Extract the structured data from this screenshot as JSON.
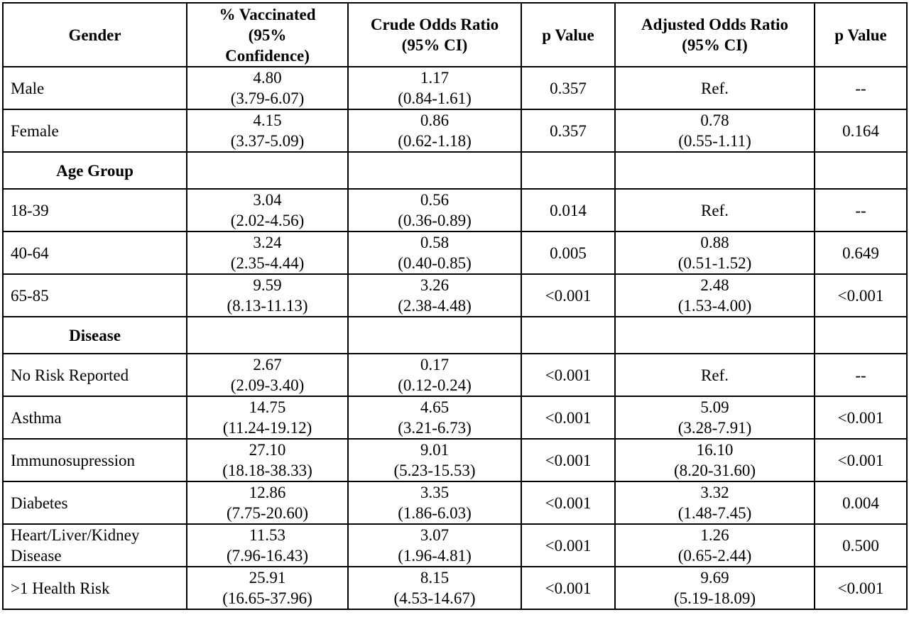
{
  "headers": {
    "col0": "Gender",
    "col1": [
      "% Vaccinated",
      "(95%",
      "Confidence)"
    ],
    "col2": [
      "Crude Odds Ratio",
      "(95% CI)"
    ],
    "col3": "p Value",
    "col4": [
      "Adjusted Odds Ratio",
      "(95% CI)"
    ],
    "col5": "p Value"
  },
  "gender_rows": [
    {
      "label": "Male",
      "vacc": "4.80",
      "vacc_ci": "(3.79-6.07)",
      "crude": "1.17",
      "crude_ci": "(0.84-1.61)",
      "p1": "0.357",
      "adj": "Ref.",
      "adj_ci": "",
      "p2": "--"
    },
    {
      "label": "Female",
      "vacc": "4.15",
      "vacc_ci": "(3.37-5.09)",
      "crude": "0.86",
      "crude_ci": "(0.62-1.18)",
      "p1": "0.357",
      "adj": "0.78",
      "adj_ci": "(0.55-1.11)",
      "p2": "0.164"
    }
  ],
  "age_section": "Age Group",
  "age_rows": [
    {
      "label": "18-39",
      "vacc": "3.04",
      "vacc_ci": "(2.02-4.56)",
      "crude": "0.56",
      "crude_ci": "(0.36-0.89)",
      "p1": "0.014",
      "adj": "Ref.",
      "adj_ci": "",
      "p2": "--"
    },
    {
      "label": "40-64",
      "vacc": "3.24",
      "vacc_ci": "(2.35-4.44)",
      "crude": "0.58",
      "crude_ci": "(0.40-0.85)",
      "p1": "0.005",
      "adj": "0.88",
      "adj_ci": "(0.51-1.52)",
      "p2": "0.649"
    },
    {
      "label": "65-85",
      "vacc": "9.59",
      "vacc_ci": "(8.13-11.13)",
      "crude": "3.26",
      "crude_ci": "(2.38-4.48)",
      "p1": "<0.001",
      "adj": "2.48",
      "adj_ci": "(1.53-4.00)",
      "p2": "<0.001"
    }
  ],
  "disease_section": "Disease",
  "disease_rows": [
    {
      "label": "No Risk Reported",
      "vacc": "2.67",
      "vacc_ci": "(2.09-3.40)",
      "crude": "0.17",
      "crude_ci": "(0.12-0.24)",
      "p1": "<0.001",
      "adj": "Ref.",
      "adj_ci": "",
      "p2": "--"
    },
    {
      "label": "Asthma",
      "vacc": "14.75",
      "vacc_ci": "(11.24-19.12)",
      "crude": "4.65",
      "crude_ci": "(3.21-6.73)",
      "p1": "<0.001",
      "adj": "5.09",
      "adj_ci": "(3.28-7.91)",
      "p2": "<0.001"
    },
    {
      "label": "Immunosupression",
      "vacc": "27.10",
      "vacc_ci": "(18.18-38.33)",
      "crude": "9.01",
      "crude_ci": "(5.23-15.53)",
      "p1": "<0.001",
      "adj": "16.10",
      "adj_ci": "(8.20-31.60)",
      "p2": "<0.001"
    },
    {
      "label": "Diabetes",
      "vacc": "12.86",
      "vacc_ci": "(7.75-20.60)",
      "crude": "3.35",
      "crude_ci": "(1.86-6.03)",
      "p1": "<0.001",
      "adj": "3.32",
      "adj_ci": "(1.48-7.45)",
      "p2": "0.004"
    },
    {
      "label": "Heart/Liver/Kidney Disease",
      "vacc": "11.53",
      "vacc_ci": "(7.96-16.43)",
      "crude": "3.07",
      "crude_ci": "(1.96-4.81)",
      "p1": "<0.001",
      "adj": "1.26",
      "adj_ci": "(0.65-2.44)",
      "p2": "0.500"
    },
    {
      "label": ">1 Health Risk",
      "vacc": "25.91",
      "vacc_ci": "(16.65-37.96)",
      "crude": "8.15",
      "crude_ci": "(4.53-14.67)",
      "p1": "<0.001",
      "adj": "9.69",
      "adj_ci": "(5.19-18.09)",
      "p2": "<0.001"
    }
  ]
}
